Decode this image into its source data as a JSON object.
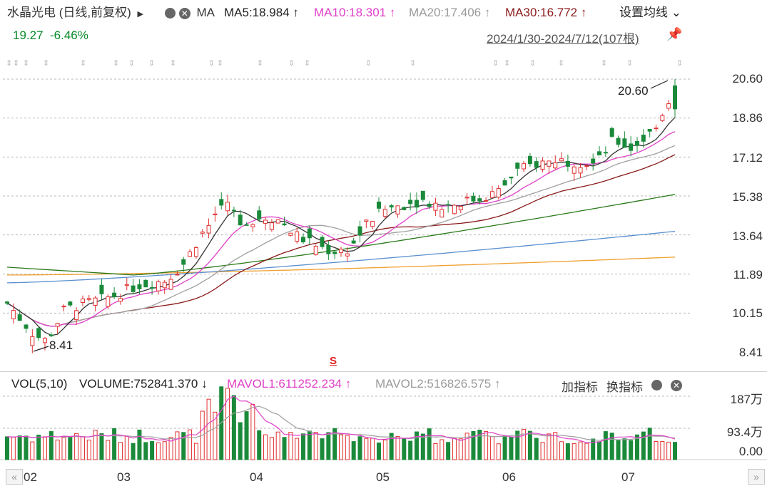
{
  "header": {
    "title": "水晶光电 (日线,前复权)",
    "ma_label": "MA",
    "ma5": "MA5:18.984",
    "ma10": "MA10:18.301",
    "ma20": "MA20:17.406",
    "ma30": "MA30:16.772",
    "settings": "设置均线",
    "price": "19.27",
    "change": "-6.46%",
    "range": "2024/1/30-2024/7/12(107根)"
  },
  "volume_header": {
    "vol": "VOL(5,10)",
    "volume": "VOLUME:752841.370",
    "mavol1": "MAVOL1:611252.234",
    "mavol2": "MAVOL2:516826.575",
    "add_indicator": "加指标",
    "switch_indicator": "换指标"
  },
  "annotations": {
    "high": "20.60",
    "low": "8.41",
    "marker": "S"
  },
  "colors": {
    "up": "#e03030",
    "down": "#1a8a3a",
    "ma5": "#333333",
    "ma10": "#e040c8",
    "ma20": "#a0a0a0",
    "ma30": "#8a1a1a",
    "ma60": "#2a7a1a",
    "ma120": "#5a90d0",
    "ma250": "#f0a030"
  },
  "chart_data": {
    "type": "candlestick",
    "price_axis": {
      "min": 8.41,
      "max": 20.6,
      "ticks": [
        "20.60",
        "18.86",
        "17.12",
        "15.38",
        "13.64",
        "11.89",
        "10.15",
        "8.41"
      ]
    },
    "volume_axis": {
      "min": 0,
      "max": "187万",
      "ticks": [
        "187万",
        "93.4万",
        "0.00"
      ]
    },
    "x_ticks": [
      "02",
      "03",
      "04",
      "05",
      "06",
      "07"
    ],
    "n_bars": 107
  }
}
